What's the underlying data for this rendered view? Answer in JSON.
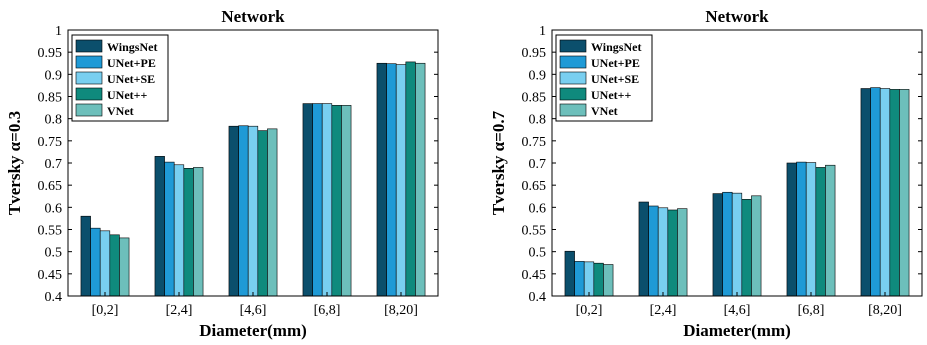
{
  "chart_data": [
    {
      "type": "bar",
      "title": "Network",
      "xlabel": "Diameter(mm)",
      "ylabel": "Tversky α=0.3",
      "ylim": [
        0.4,
        1.0
      ],
      "yticks": [
        "0.4",
        "0.45",
        "0.5",
        "0.55",
        "0.6",
        "0.65",
        "0.7",
        "0.75",
        "0.8",
        "0.85",
        "0.9",
        "0.95",
        "1"
      ],
      "categories": [
        "[0,2]",
        "[2,4]",
        "[4,6]",
        "[6,8]",
        "[8,20]"
      ],
      "legend_position": "top-left",
      "grid": false,
      "series": [
        {
          "name": "WingsNet",
          "color": "#0b4f6c",
          "values": [
            0.58,
            0.715,
            0.783,
            0.834,
            0.925
          ]
        },
        {
          "name": "UNet+PE",
          "color": "#1f9ad6",
          "values": [
            0.553,
            0.702,
            0.784,
            0.834,
            0.924
          ]
        },
        {
          "name": "UNet+SE",
          "color": "#79cff0",
          "values": [
            0.547,
            0.696,
            0.783,
            0.834,
            0.922
          ]
        },
        {
          "name": "UNet++",
          "color": "#0f8a7d",
          "values": [
            0.538,
            0.688,
            0.773,
            0.83,
            0.928
          ]
        },
        {
          "name": "VNet",
          "color": "#6dbfbb",
          "values": [
            0.531,
            0.69,
            0.777,
            0.83,
            0.925
          ]
        }
      ]
    },
    {
      "type": "bar",
      "title": "Network",
      "xlabel": "Diameter(mm)",
      "ylabel": "Tversky α=0.7",
      "ylim": [
        0.4,
        1.0
      ],
      "yticks": [
        "0.4",
        "0.45",
        "0.5",
        "0.55",
        "0.6",
        "0.65",
        "0.7",
        "0.75",
        "0.8",
        "0.85",
        "0.9",
        "0.95",
        "1"
      ],
      "categories": [
        "[0,2]",
        "[2,4]",
        "[4,6]",
        "[6,8]",
        "[8,20]"
      ],
      "legend_position": "top-left",
      "grid": false,
      "series": [
        {
          "name": "WingsNet",
          "color": "#0b4f6c",
          "values": [
            0.501,
            0.612,
            0.631,
            0.7,
            0.868
          ]
        },
        {
          "name": "UNet+PE",
          "color": "#1f9ad6",
          "values": [
            0.478,
            0.603,
            0.634,
            0.702,
            0.87
          ]
        },
        {
          "name": "UNet+SE",
          "color": "#79cff0",
          "values": [
            0.477,
            0.599,
            0.632,
            0.701,
            0.868
          ]
        },
        {
          "name": "UNet++",
          "color": "#0f8a7d",
          "values": [
            0.474,
            0.594,
            0.618,
            0.69,
            0.866
          ]
        },
        {
          "name": "VNet",
          "color": "#6dbfbb",
          "values": [
            0.471,
            0.597,
            0.626,
            0.695,
            0.866
          ]
        }
      ]
    }
  ]
}
